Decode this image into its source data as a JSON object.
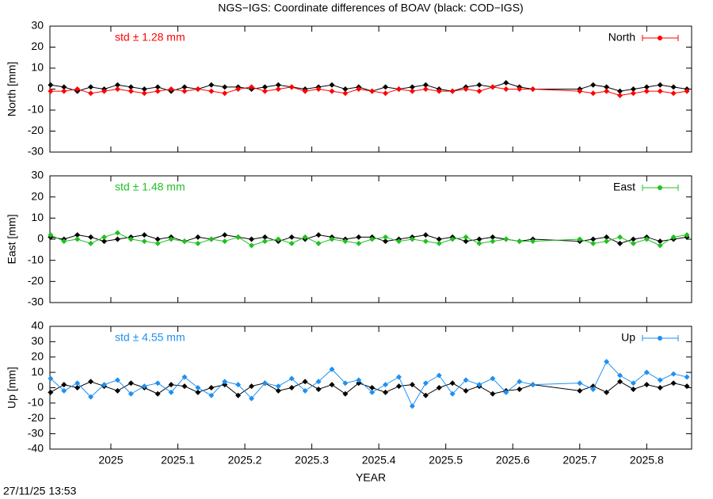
{
  "title": "NGS−IGS: Coordinate differences of BOAV (black: COD−IGS)",
  "xlabel": "YEAR",
  "timestamp": "27/11/25 13:53",
  "chart_data": [
    {
      "type": "line",
      "ylabel": "North [mm]",
      "annotation": "std ± 1.28 mm",
      "xlim": [
        2024.909,
        2025.867
      ],
      "xticks": [
        2025,
        2025.1,
        2025.2,
        2025.3,
        2025.4,
        2025.5,
        2025.6,
        2025.7,
        2025.8
      ],
      "ylim": [
        -30,
        30
      ],
      "yticks": [
        -30,
        -20,
        -10,
        0,
        10,
        20,
        30
      ],
      "x": [
        2024.91,
        2024.93,
        2024.95,
        2024.97,
        2024.99,
        2025.01,
        2025.03,
        2025.05,
        2025.07,
        2025.09,
        2025.11,
        2025.13,
        2025.15,
        2025.17,
        2025.19,
        2025.21,
        2025.23,
        2025.25,
        2025.27,
        2025.29,
        2025.31,
        2025.33,
        2025.35,
        2025.37,
        2025.39,
        2025.41,
        2025.43,
        2025.45,
        2025.47,
        2025.49,
        2025.51,
        2025.53,
        2025.55,
        2025.57,
        2025.59,
        2025.61,
        2025.63,
        2025.7,
        2025.72,
        2025.74,
        2025.76,
        2025.78,
        2025.8,
        2025.82,
        2025.84,
        2025.86
      ],
      "series": [
        {
          "color": "#000000",
          "values": [
            2,
            1,
            -1,
            1,
            0,
            2,
            1,
            0,
            1,
            -1,
            1,
            0,
            2,
            1,
            1,
            0,
            1,
            2,
            1,
            0,
            1,
            2,
            0,
            1,
            -1,
            1,
            0,
            1,
            2,
            0,
            -1,
            1,
            2,
            1,
            3,
            1,
            0,
            0,
            2,
            1,
            -1,
            0,
            1,
            2,
            1,
            0
          ]
        },
        {
          "name": "North",
          "color": "#ff0000",
          "values": [
            -1,
            -1,
            0,
            -2,
            -1,
            0,
            -1,
            -2,
            -1,
            0,
            -1,
            0,
            -1,
            -2,
            0,
            1,
            -1,
            0,
            1,
            -1,
            0,
            -1,
            -2,
            0,
            -1,
            -2,
            0,
            -1,
            0,
            -1,
            -1,
            0,
            -1,
            1,
            0,
            0,
            0,
            -1,
            -2,
            -1,
            -3,
            -2,
            -1,
            -1,
            -2,
            -1
          ]
        }
      ]
    },
    {
      "type": "line",
      "ylabel": "East [mm]",
      "annotation": "std ± 1.48 mm",
      "xlim": [
        2024.909,
        2025.867
      ],
      "xticks": [
        2025,
        2025.1,
        2025.2,
        2025.3,
        2025.4,
        2025.5,
        2025.6,
        2025.7,
        2025.8
      ],
      "ylim": [
        -30,
        30
      ],
      "yticks": [
        -30,
        -20,
        -10,
        0,
        10,
        20,
        30
      ],
      "x": [
        2024.91,
        2024.93,
        2024.95,
        2024.97,
        2024.99,
        2025.01,
        2025.03,
        2025.05,
        2025.07,
        2025.09,
        2025.11,
        2025.13,
        2025.15,
        2025.17,
        2025.19,
        2025.21,
        2025.23,
        2025.25,
        2025.27,
        2025.29,
        2025.31,
        2025.33,
        2025.35,
        2025.37,
        2025.39,
        2025.41,
        2025.43,
        2025.45,
        2025.47,
        2025.49,
        2025.51,
        2025.53,
        2025.55,
        2025.57,
        2025.59,
        2025.61,
        2025.63,
        2025.7,
        2025.72,
        2025.74,
        2025.76,
        2025.78,
        2025.8,
        2025.82,
        2025.84,
        2025.86
      ],
      "series": [
        {
          "color": "#000000",
          "values": [
            1,
            0,
            2,
            1,
            -1,
            0,
            1,
            2,
            0,
            1,
            -1,
            1,
            0,
            2,
            1,
            0,
            1,
            -1,
            1,
            0,
            2,
            1,
            0,
            1,
            1,
            -1,
            0,
            1,
            2,
            0,
            1,
            -1,
            0,
            1,
            0,
            -1,
            0,
            -1,
            0,
            1,
            -2,
            0,
            1,
            -1,
            0,
            1
          ]
        },
        {
          "name": "East",
          "color": "#20c020",
          "values": [
            2,
            -1,
            0,
            -2,
            1,
            3,
            0,
            -1,
            -2,
            0,
            -1,
            -2,
            0,
            -1,
            1,
            -3,
            -1,
            0,
            -2,
            1,
            -2,
            0,
            -1,
            -2,
            0,
            1,
            -1,
            0,
            -1,
            -2,
            0,
            1,
            -2,
            -1,
            0,
            -1,
            -1,
            0,
            -2,
            -1,
            1,
            -2,
            0,
            -3,
            1,
            2
          ]
        }
      ]
    },
    {
      "type": "line",
      "ylabel": "Up [mm]",
      "annotation": "std ± 4.55 mm",
      "xlim": [
        2024.909,
        2025.867
      ],
      "xticks": [
        2025,
        2025.1,
        2025.2,
        2025.3,
        2025.4,
        2025.5,
        2025.6,
        2025.7,
        2025.8
      ],
      "ylim": [
        -40,
        40
      ],
      "yticks": [
        -40,
        -30,
        -20,
        -10,
        0,
        10,
        20,
        30,
        40
      ],
      "x": [
        2024.91,
        2024.93,
        2024.95,
        2024.97,
        2024.99,
        2025.01,
        2025.03,
        2025.05,
        2025.07,
        2025.09,
        2025.11,
        2025.13,
        2025.15,
        2025.17,
        2025.19,
        2025.21,
        2025.23,
        2025.25,
        2025.27,
        2025.29,
        2025.31,
        2025.33,
        2025.35,
        2025.37,
        2025.39,
        2025.41,
        2025.43,
        2025.45,
        2025.47,
        2025.49,
        2025.51,
        2025.53,
        2025.55,
        2025.57,
        2025.59,
        2025.61,
        2025.63,
        2025.7,
        2025.72,
        2025.74,
        2025.76,
        2025.78,
        2025.8,
        2025.82,
        2025.84,
        2025.86
      ],
      "series": [
        {
          "color": "#000000",
          "values": [
            -3,
            2,
            0,
            4,
            1,
            -2,
            3,
            0,
            -4,
            2,
            1,
            -3,
            0,
            2,
            -5,
            1,
            3,
            -2,
            0,
            4,
            -1,
            2,
            -4,
            3,
            0,
            -3,
            1,
            2,
            -5,
            0,
            3,
            -2,
            1,
            -4,
            -2,
            -1,
            2,
            -2,
            1,
            -3,
            4,
            -1,
            2,
            0,
            3,
            1
          ]
        },
        {
          "name": "Up",
          "color": "#2090ef",
          "values": [
            6,
            -2,
            3,
            -6,
            2,
            5,
            -4,
            1,
            3,
            -3,
            7,
            0,
            -5,
            4,
            2,
            -7,
            3,
            1,
            6,
            -2,
            4,
            12,
            3,
            5,
            -3,
            2,
            7,
            -12,
            3,
            8,
            -4,
            5,
            2,
            6,
            -3,
            4,
            2,
            3,
            -1,
            17,
            8,
            3,
            10,
            5,
            9,
            7
          ]
        }
      ]
    }
  ]
}
